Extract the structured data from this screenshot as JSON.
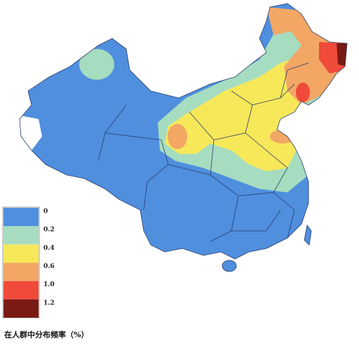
{
  "legend": {
    "title": "在人群中分布频率（%）",
    "items": [
      {
        "label": "0",
        "color": "#4f8fde"
      },
      {
        "label": "0.2",
        "color": "#a6dcc0"
      },
      {
        "label": "0.4",
        "color": "#f7e85a"
      },
      {
        "label": "0.6",
        "color": "#f2a765"
      },
      {
        "label": "1.0",
        "color": "#ef4a3a"
      },
      {
        "label": "1.2",
        "color": "#7a1a14"
      }
    ]
  }
}
